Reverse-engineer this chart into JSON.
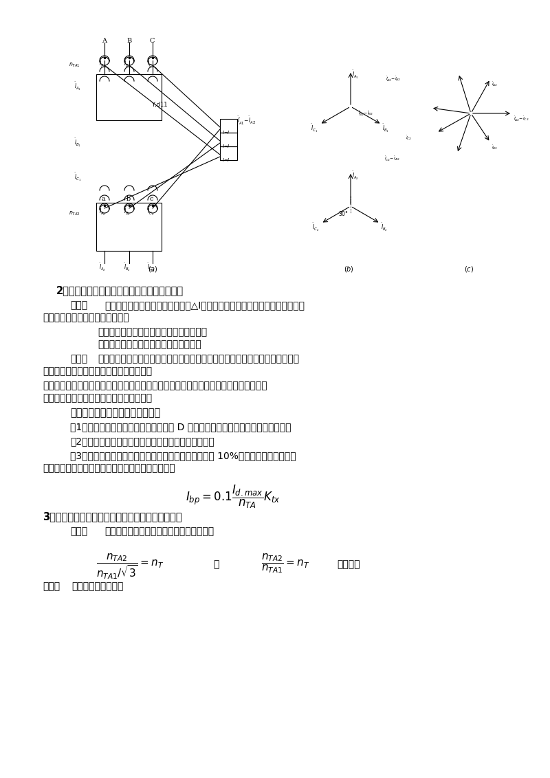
{
  "page_bg": "#ffffff",
  "text_color": "#000000",
  "fig_width": 8.0,
  "fig_height": 11.32,
  "section2_title": "2．由两侧电流互感器的误差引起的不平衡电流",
  "section2_text1_bold": "思考：",
  "section2_text1": "变压器两侧电流互感器有电流误差△I，在正常运行及保护范围外部故障时流入差回路中的电流不为零，为什么？",
  "section2_indent1": "为什么在正常运行时，不平衡电流也很小？",
  "section2_indent2": "为什么当外部故障时，不平衡电流增大？",
  "section2_reason_bold": "原因：",
  "section2_reason": "电流互感器的电流误差和其励磁电流的大小、二次负载的大小及励磁阻抗有关，而励磁阻抗又与铁芯特性和饱和程度有关。",
  "section2_para2": "当被保护变压器两侧电流互感器型号不同，变比不同，二次负载阻抗及短路电流倍数不同时都会使电流互感器励磁电流的差值增大。",
  "section2_measures_title": "减少这种不平衡电流影响的措施：",
  "measure1": "（1）在选择互感器时，应选带有气隙的 D 级铁芯互感器，使之在短路时也不饱和。",
  "measure2": "（2）选大变比的电流互感器，可以降低短路电流倍数。",
  "measure3": "（3）在考虑二次回路的负载时，通常都以电流互感器的 10%误差曲线为依据，进行导线截面校验，不平衡电流会更小。最大可能值为：",
  "section3_title": "3．由计算变比与实际变比不同而产生的不平衡电流",
  "section3_think_bold": "思考：",
  "section3_think": "两侧的电流互感器、变压器是不是一定满足",
  "yuanyin3_bold": "原因：",
  "yuanyin3": "很难满足上述关系。"
}
